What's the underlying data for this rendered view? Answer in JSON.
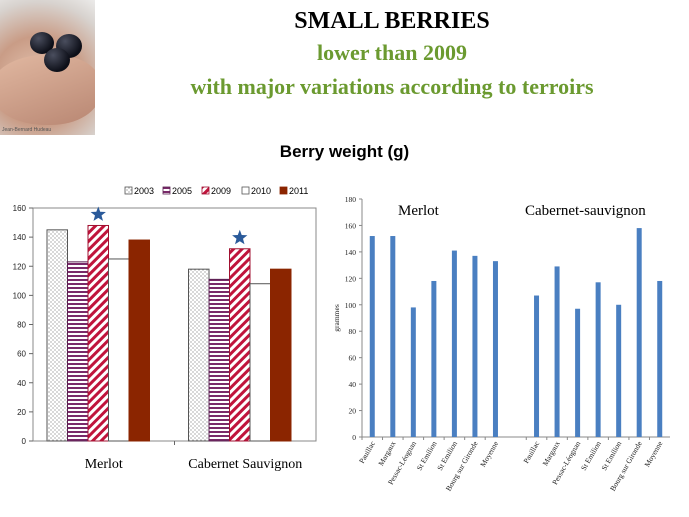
{
  "slide": {
    "title": "SMALL BERRIES",
    "subtitle_1": "lower than 2009",
    "subtitle_2": "with major variations according to terroirs",
    "photo_caption": "Jean-Bernard Hudeau",
    "chart_heading": "Berry weight (g)"
  },
  "colors": {
    "green_text": "#6b9a30",
    "dark_red": "#8b2500",
    "blue_bar": "#4a7fc1",
    "star": "#2a5a9a"
  },
  "chart_data": [
    {
      "type": "bar",
      "title": "",
      "categories": [
        "Merlot",
        "Cabernet Sauvignon"
      ],
      "series": [
        {
          "name": "2003",
          "values": [
            145,
            118
          ]
        },
        {
          "name": "2005",
          "values": [
            123,
            111
          ]
        },
        {
          "name": "2009",
          "values": [
            148,
            132
          ]
        },
        {
          "name": "2010",
          "values": [
            125,
            108
          ]
        },
        {
          "name": "2011",
          "values": [
            138,
            118
          ]
        }
      ],
      "ylim": [
        0,
        160
      ],
      "yticks": [
        0,
        20,
        40,
        60,
        80,
        100,
        120,
        140,
        160
      ],
      "annotations": [
        "star above 2009 bars"
      ],
      "legend": "top"
    },
    {
      "type": "bar",
      "title": "",
      "group_labels": [
        "Merlot",
        "Cabernet-sauvignon"
      ],
      "groups": [
        {
          "name": "Merlot",
          "categories": [
            "Pauillac",
            "Margaux",
            "Pessac-Léognan",
            "St Emilion",
            "St Emilion",
            "Bourg sur Gironde",
            "Moyenne"
          ],
          "values": [
            152,
            152,
            98,
            118,
            141,
            137,
            133
          ]
        },
        {
          "name": "Cabernet-sauvignon",
          "categories": [
            "Pauillac",
            "Margaux",
            "Pessac-Léognan",
            "St Emilion",
            "St Emilion",
            "Bourg sur Gironde",
            "Moyenne"
          ],
          "values": [
            107,
            129,
            97,
            117,
            100,
            158,
            118
          ]
        }
      ],
      "ylabel": "grammes",
      "ylim": [
        0,
        180
      ],
      "yticks": [
        0,
        20,
        40,
        60,
        80,
        100,
        120,
        140,
        160,
        180
      ]
    }
  ]
}
